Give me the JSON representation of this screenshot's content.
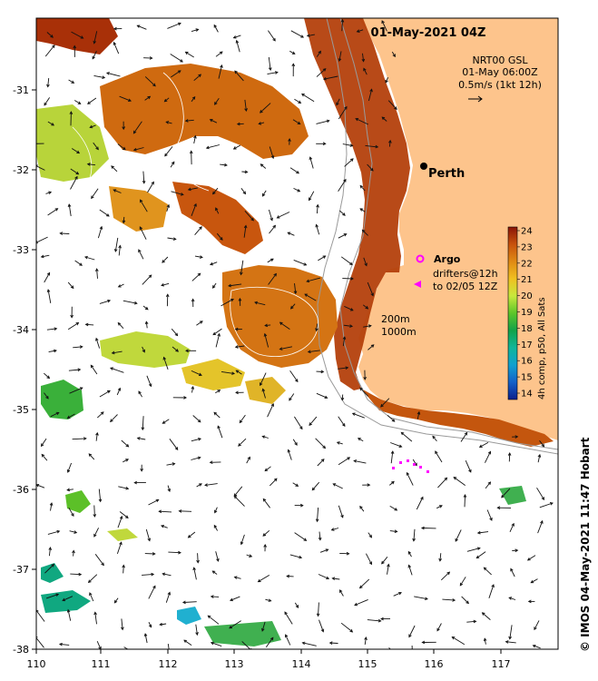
{
  "title": "01-May-2021 04Z",
  "wind_block": {
    "line1": "NRT00 GSL",
    "line2": "01-May 06:00Z",
    "line3": "0.5m/s (1kt 12h)"
  },
  "city": {
    "name": "Perth",
    "lon": 115.86,
    "lat": -31.95
  },
  "argo_label": "Argo",
  "drifters_line1": "drifters@12h",
  "drifters_line2": "to 02/05 12Z",
  "contour_labels": [
    "200m",
    "1000m"
  ],
  "colorbar": {
    "ticks": [
      "24",
      "23",
      "22",
      "21",
      "20",
      "19",
      "18",
      "17",
      "16",
      "15",
      "14"
    ],
    "label": "4h comp, p50, All Sats"
  },
  "credit": "© IMOS 04-May-2021 11:47 Hobart",
  "x_ticks": [
    "110",
    "111",
    "112",
    "113",
    "114",
    "115",
    "116",
    "117"
  ],
  "y_ticks": [
    "-31",
    "-32",
    "-33",
    "-34",
    "-35",
    "-36",
    "-37",
    "-38"
  ],
  "colors": {
    "land": "#fdc48c",
    "coast": "#9a9a9a",
    "drifter": "#ff00ff"
  }
}
